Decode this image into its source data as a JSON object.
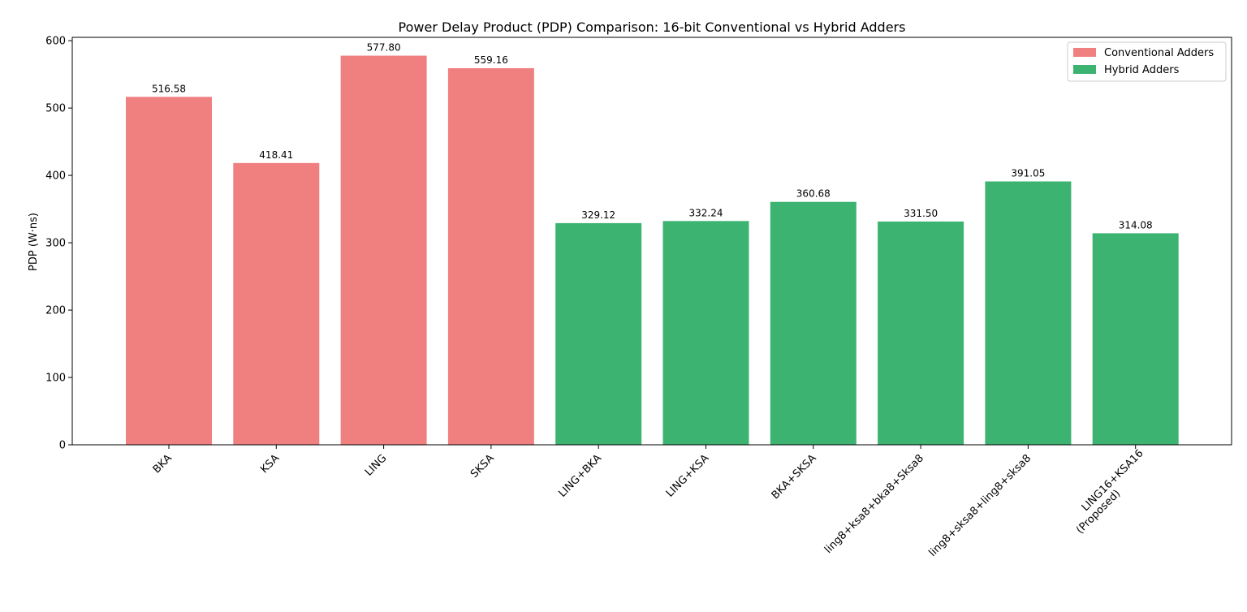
{
  "chart_data": {
    "type": "bar",
    "title": "Power Delay Product (PDP) Comparison: 16-bit Conventional vs Hybrid Adders",
    "xlabel": "",
    "ylabel": "PDP (W·ns)",
    "ylim": [
      0,
      605
    ],
    "yticks": [
      0,
      100,
      200,
      300,
      400,
      500,
      600
    ],
    "grid": false,
    "legend_position": "top-right",
    "categories": [
      "BKA",
      "KSA",
      "LING",
      "SKSA",
      "LING+BKA",
      "LING+KSA",
      "BKA+SKSA",
      "ling8+ksa8+bka8+Sksa8",
      "ling8+sksa8+ling8+sksa8",
      "LING16+KSA16\n(Proposed)"
    ],
    "values": [
      516.58,
      418.41,
      577.8,
      559.16,
      329.12,
      332.24,
      360.68,
      331.5,
      391.05,
      314.08
    ],
    "value_labels": [
      "516.58",
      "418.41",
      "577.80",
      "559.16",
      "329.12",
      "332.24",
      "360.68",
      "331.50",
      "391.05",
      "314.08"
    ],
    "groups": [
      0,
      0,
      0,
      0,
      1,
      1,
      1,
      1,
      1,
      1
    ],
    "series": [
      {
        "name": "Conventional Adders",
        "color": "#f08080"
      },
      {
        "name": "Hybrid Adders",
        "color": "#3cb371"
      }
    ]
  }
}
